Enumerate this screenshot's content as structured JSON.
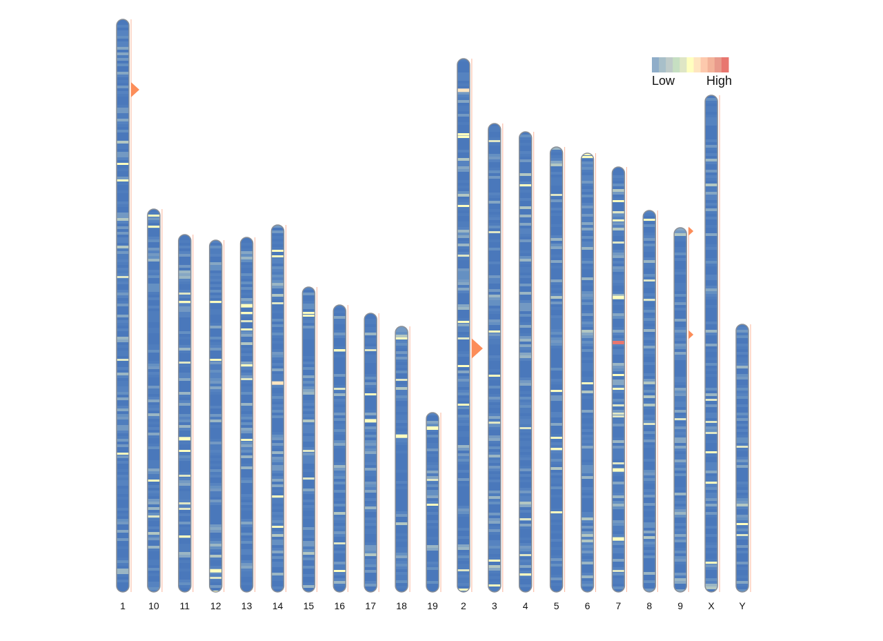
{
  "chart_data": {
    "type": "heatmap",
    "title": "",
    "legend": {
      "low_label": "Low",
      "high_label": "High",
      "position": "top-right",
      "colors": [
        "#8fadc9",
        "#a8bfc9",
        "#bfcbc9",
        "#c6dfc2",
        "#dfe6c5",
        "#ffffbf",
        "#fee5c0",
        "#fdc9ad",
        "#f3b39a",
        "#e89a8b",
        "#e8766f"
      ]
    },
    "base_color": "#4a78bb",
    "chromosomes": [
      {
        "name": "1",
        "length": 249
      },
      {
        "name": "10",
        "length": 166.5
      },
      {
        "name": "11",
        "length": 155.4
      },
      {
        "name": "12",
        "length": 153
      },
      {
        "name": "13",
        "length": 154.2
      },
      {
        "name": "14",
        "length": 159.6
      },
      {
        "name": "15",
        "length": 132.6
      },
      {
        "name": "16",
        "length": 124.8
      },
      {
        "name": "17",
        "length": 121.2
      },
      {
        "name": "18",
        "length": 115.5
      },
      {
        "name": "19",
        "length": 78
      },
      {
        "name": "2",
        "length": 231.9
      },
      {
        "name": "3",
        "length": 203.7
      },
      {
        "name": "4",
        "length": 200.1
      },
      {
        "name": "5",
        "length": 193.5
      },
      {
        "name": "6",
        "length": 190.8
      },
      {
        "name": "7",
        "length": 184.8
      },
      {
        "name": "8",
        "length": 165.9
      },
      {
        "name": "9",
        "length": 158.4
      },
      {
        "name": "X",
        "length": 216
      },
      {
        "name": "Y",
        "length": 116.4
      }
    ],
    "hotspots": [
      {
        "chr": "7",
        "pos": 75.6,
        "level": 10
      },
      {
        "chr": "2",
        "pos": 13,
        "level": 6
      },
      {
        "chr": "14",
        "pos": 68,
        "level": 6
      },
      {
        "chr": "12",
        "pos": 143,
        "level": 5
      },
      {
        "chr": "17",
        "pos": 46,
        "level": 5
      },
      {
        "chr": "7",
        "pos": 56,
        "level": 5
      },
      {
        "chr": "7",
        "pos": 131,
        "level": 5
      },
      {
        "chr": "7",
        "pos": 161,
        "level": 5
      },
      {
        "chr": "13",
        "pos": 29,
        "level": 5
      },
      {
        "chr": "19",
        "pos": 6,
        "level": 5
      },
      {
        "chr": "18",
        "pos": 47,
        "level": 5
      },
      {
        "chr": "11",
        "pos": 88,
        "level": 5
      }
    ],
    "markers": [
      {
        "chr": "1",
        "pos": 30.6,
        "size": "medium"
      },
      {
        "chr": "2",
        "pos": 126,
        "size": "large"
      },
      {
        "chr": "9",
        "pos": 1.5,
        "size": "small"
      },
      {
        "chr": "9",
        "pos": 46.5,
        "size": "small"
      }
    ],
    "marker_color": "#fc8d59"
  }
}
